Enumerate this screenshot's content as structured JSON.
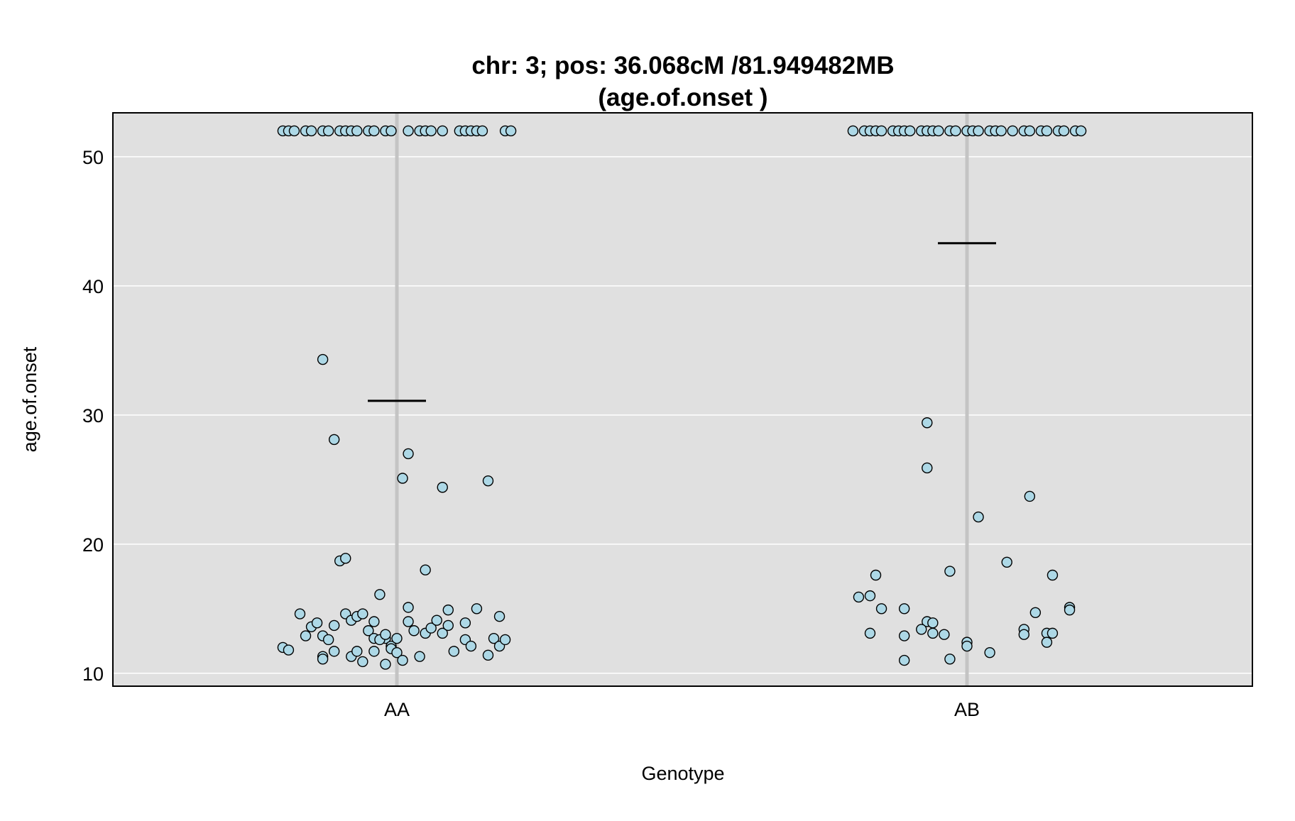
{
  "chart_data": {
    "type": "scatter",
    "title": "chr: 3; pos: 36.068cM /81.949482MB",
    "subtitle": "(age.of.onset )",
    "xlabel": "Genotype",
    "ylabel": "age.of.onset",
    "categories": [
      "AA",
      "AB"
    ],
    "ylim": [
      9,
      53.4
    ],
    "yticks": [
      10,
      20,
      30,
      40,
      50
    ],
    "grid": true,
    "colors": {
      "panel_bg": "#e0e0e0",
      "grid": "#ffffff",
      "category_line": "#c4c4c4",
      "point_fill": "#add8e6",
      "point_stroke": "#000000",
      "mean_line": "#000000"
    },
    "means": [
      {
        "category": "AA",
        "value": 31.1
      },
      {
        "category": "AB",
        "value": 43.3
      }
    ],
    "series": [
      {
        "category": "AA",
        "points": [
          [
            -0.2,
            52
          ],
          [
            -0.19,
            52
          ],
          [
            -0.18,
            52
          ],
          [
            -0.16,
            52
          ],
          [
            -0.15,
            52
          ],
          [
            -0.13,
            52
          ],
          [
            -0.12,
            52
          ],
          [
            -0.1,
            52
          ],
          [
            -0.09,
            52
          ],
          [
            -0.08,
            52
          ],
          [
            -0.07,
            52
          ],
          [
            -0.05,
            52
          ],
          [
            -0.04,
            52
          ],
          [
            -0.02,
            52
          ],
          [
            -0.01,
            52
          ],
          [
            0.02,
            52
          ],
          [
            0.04,
            52
          ],
          [
            0.05,
            52
          ],
          [
            0.06,
            52
          ],
          [
            0.08,
            52
          ],
          [
            0.11,
            52
          ],
          [
            0.12,
            52
          ],
          [
            0.13,
            52
          ],
          [
            0.14,
            52
          ],
          [
            0.15,
            52
          ],
          [
            0.19,
            52
          ],
          [
            0.2,
            52
          ],
          [
            -0.13,
            34.3
          ],
          [
            -0.11,
            28.1
          ],
          [
            0.02,
            27.0
          ],
          [
            0.01,
            25.1
          ],
          [
            0.08,
            24.4
          ],
          [
            0.16,
            24.9
          ],
          [
            -0.1,
            18.7
          ],
          [
            -0.09,
            18.9
          ],
          [
            0.05,
            18.0
          ],
          [
            -0.03,
            16.1
          ],
          [
            -0.17,
            14.6
          ],
          [
            -0.15,
            13.6
          ],
          [
            -0.14,
            13.9
          ],
          [
            -0.11,
            13.7
          ],
          [
            -0.09,
            14.6
          ],
          [
            -0.08,
            14.1
          ],
          [
            -0.07,
            14.4
          ],
          [
            -0.06,
            14.6
          ],
          [
            -0.04,
            14.0
          ],
          [
            -0.02,
            12.7
          ],
          [
            0.02,
            15.1
          ],
          [
            0.02,
            14.0
          ],
          [
            0.03,
            13.3
          ],
          [
            0.05,
            13.1
          ],
          [
            0.06,
            13.5
          ],
          [
            0.07,
            14.1
          ],
          [
            0.08,
            13.1
          ],
          [
            0.09,
            13.7
          ],
          [
            0.09,
            14.9
          ],
          [
            0.12,
            13.9
          ],
          [
            0.14,
            15.0
          ],
          [
            0.18,
            14.4
          ],
          [
            -0.2,
            12.0
          ],
          [
            -0.19,
            11.8
          ],
          [
            -0.16,
            12.9
          ],
          [
            -0.13,
            12.9
          ],
          [
            -0.13,
            11.3
          ],
          [
            -0.13,
            11.1
          ],
          [
            -0.12,
            12.6
          ],
          [
            -0.11,
            11.7
          ],
          [
            -0.08,
            11.3
          ],
          [
            -0.07,
            11.7
          ],
          [
            -0.06,
            10.9
          ],
          [
            -0.05,
            13.3
          ],
          [
            -0.04,
            12.7
          ],
          [
            -0.04,
            11.7
          ],
          [
            -0.03,
            12.6
          ],
          [
            -0.02,
            10.7
          ],
          [
            -0.02,
            13.0
          ],
          [
            -0.01,
            12.1
          ],
          [
            -0.01,
            11.9
          ],
          [
            0.0,
            11.6
          ],
          [
            0.0,
            12.7
          ],
          [
            0.01,
            11.0
          ],
          [
            0.04,
            11.3
          ],
          [
            0.1,
            11.7
          ],
          [
            0.12,
            12.6
          ],
          [
            0.13,
            12.1
          ],
          [
            0.16,
            11.4
          ],
          [
            0.17,
            12.7
          ],
          [
            0.18,
            12.1
          ],
          [
            0.19,
            12.6
          ]
        ]
      },
      {
        "category": "AB",
        "points": [
          [
            -0.2,
            52
          ],
          [
            -0.18,
            52
          ],
          [
            -0.17,
            52
          ],
          [
            -0.16,
            52
          ],
          [
            -0.15,
            52
          ],
          [
            -0.13,
            52
          ],
          [
            -0.12,
            52
          ],
          [
            -0.11,
            52
          ],
          [
            -0.1,
            52
          ],
          [
            -0.08,
            52
          ],
          [
            -0.07,
            52
          ],
          [
            -0.06,
            52
          ],
          [
            -0.05,
            52
          ],
          [
            -0.03,
            52
          ],
          [
            -0.02,
            52
          ],
          [
            0.0,
            52
          ],
          [
            0.01,
            52
          ],
          [
            0.02,
            52
          ],
          [
            0.04,
            52
          ],
          [
            0.05,
            52
          ],
          [
            0.06,
            52
          ],
          [
            0.08,
            52
          ],
          [
            0.1,
            52
          ],
          [
            0.11,
            52
          ],
          [
            0.13,
            52
          ],
          [
            0.14,
            52
          ],
          [
            0.16,
            52
          ],
          [
            0.17,
            52
          ],
          [
            0.19,
            52
          ],
          [
            0.2,
            52
          ],
          [
            -0.07,
            29.4
          ],
          [
            -0.07,
            25.9
          ],
          [
            0.02,
            22.1
          ],
          [
            0.11,
            23.7
          ],
          [
            0.07,
            18.6
          ],
          [
            -0.03,
            17.9
          ],
          [
            -0.16,
            17.6
          ],
          [
            0.15,
            17.6
          ],
          [
            -0.19,
            15.9
          ],
          [
            -0.17,
            16.0
          ],
          [
            -0.15,
            15.0
          ],
          [
            -0.11,
            15.0
          ],
          [
            0.18,
            15.1
          ],
          [
            0.12,
            14.7
          ],
          [
            -0.07,
            14.0
          ],
          [
            -0.06,
            13.9
          ],
          [
            -0.08,
            13.4
          ],
          [
            0.1,
            13.4
          ],
          [
            -0.17,
            13.1
          ],
          [
            -0.06,
            13.1
          ],
          [
            -0.04,
            13.0
          ],
          [
            0.1,
            13.0
          ],
          [
            0.14,
            13.1
          ],
          [
            0.15,
            13.1
          ],
          [
            0.18,
            14.9
          ],
          [
            -0.11,
            12.9
          ],
          [
            0.0,
            12.4
          ],
          [
            0.0,
            12.1
          ],
          [
            0.14,
            12.4
          ],
          [
            -0.11,
            11.0
          ],
          [
            -0.03,
            11.1
          ],
          [
            0.04,
            11.6
          ]
        ]
      }
    ]
  }
}
